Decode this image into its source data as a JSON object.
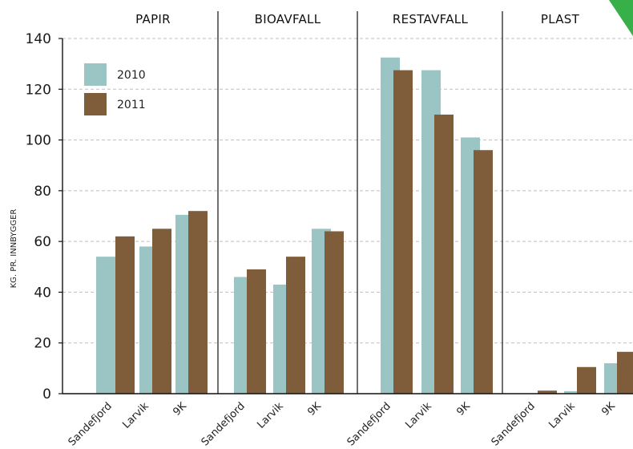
{
  "chart_data": {
    "type": "bar",
    "ylabel": "KG. PR. INNBYGGER",
    "ylim": [
      0,
      140
    ],
    "yticks": [
      0,
      20,
      40,
      60,
      80,
      100,
      120,
      140
    ],
    "grid": true,
    "legend_position": "top-left",
    "groups": [
      {
        "title": "PAPIR",
        "categories": [
          "Sandefjord",
          "Larvik",
          "9K"
        ],
        "series": [
          {
            "name": "2010",
            "values": [
              54,
              58,
              70.5
            ]
          },
          {
            "name": "2011",
            "values": [
              62,
              65,
              72
            ]
          }
        ]
      },
      {
        "title": "BIOAVFALL",
        "categories": [
          "Sandefjord",
          "Larvik",
          "9K"
        ],
        "series": [
          {
            "name": "2010",
            "values": [
              46,
              43,
              65
            ]
          },
          {
            "name": "2011",
            "values": [
              49,
              54,
              64
            ]
          }
        ]
      },
      {
        "title": "RESTAVFALL",
        "categories": [
          "Sandefjord",
          "Larvik",
          "9K"
        ],
        "series": [
          {
            "name": "2010",
            "values": [
              132.5,
              127.5,
              101
            ]
          },
          {
            "name": "2011",
            "values": [
              127.5,
              110,
              96
            ]
          }
        ]
      },
      {
        "title": "PLAST",
        "categories": [
          "Sandefjord",
          "Larvik",
          "9K"
        ],
        "series": [
          {
            "name": "2010",
            "values": [
              0,
              1,
              12
            ]
          },
          {
            "name": "2011",
            "values": [
              1.2,
              10.5,
              16.5
            ]
          }
        ]
      }
    ]
  },
  "colors": {
    "series_2010": "#9bc5c4",
    "series_2011": "#7f5c3a",
    "grid": "#bfbfbf",
    "axis": "#111111",
    "corner_accent": "#38b04a"
  },
  "legend": [
    {
      "label": "2010"
    },
    {
      "label": "2011"
    }
  ]
}
